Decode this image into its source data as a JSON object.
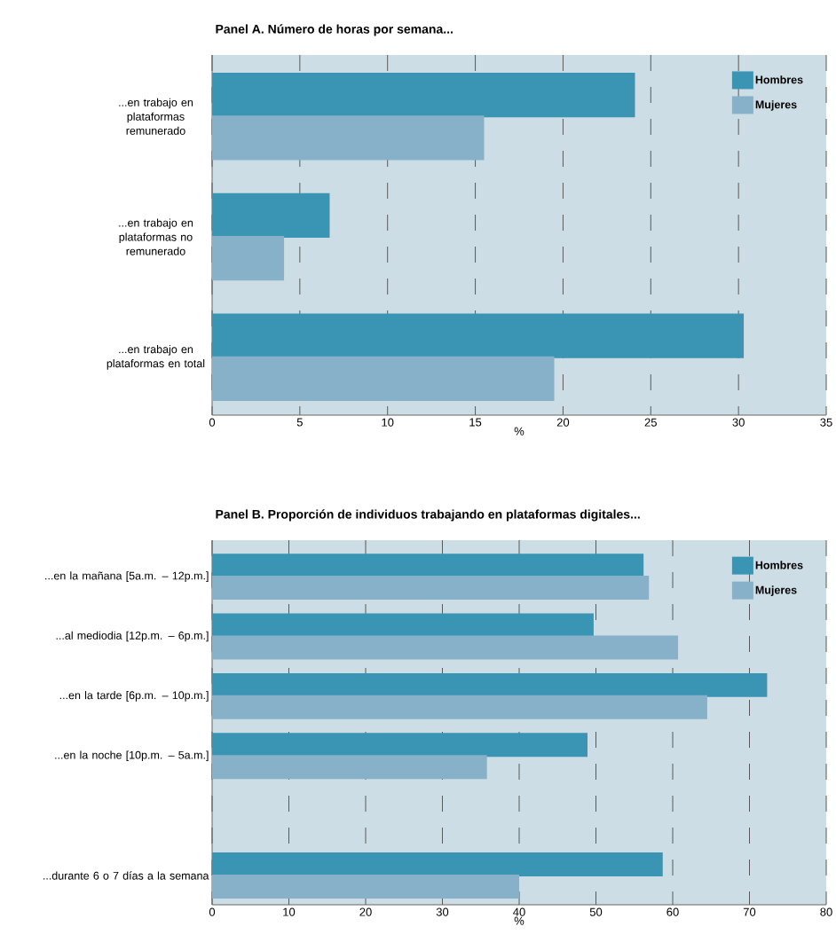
{
  "chart_data": [
    {
      "type": "bar",
      "orientation": "horizontal",
      "title": "Panel A. Número de horas por semana...",
      "xlabel": "%",
      "categories": [
        "...en trabajo en plataformas remunerado",
        "...en trabajo en plataformas no remunerado",
        "...en trabajo en plataformas en total"
      ],
      "series": [
        {
          "name": "Hombres",
          "color": "#3a95b4",
          "values": [
            24.1,
            6.7,
            30.3
          ]
        },
        {
          "name": "Mujeres",
          "color": "#86b1c8",
          "values": [
            15.5,
            4.1,
            19.5
          ]
        }
      ],
      "xlim": [
        0,
        35
      ],
      "xticks": [
        0,
        5,
        10,
        15,
        20,
        25,
        30,
        35
      ],
      "grid": "x",
      "legend": "top right"
    },
    {
      "type": "bar",
      "orientation": "horizontal",
      "title": "Panel B. Proporción de individuos trabajando en plataformas digitales...",
      "xlabel": "%",
      "categories": [
        "...en la mañana [5a.m. – 12p.m.]",
        "...al mediodia [12p.m. – 6p.m.]",
        "...en la tarde [6p.m. – 10p.m.]",
        "...en la noche [10p.m. – 5a.m.]",
        null,
        "...durante 6 o 7 días a la semana"
      ],
      "series": [
        {
          "name": "Hombres",
          "color": "#3a95b4",
          "values": [
            56.2,
            49.7,
            72.3,
            48.9,
            null,
            58.7
          ]
        },
        {
          "name": "Mujeres",
          "color": "#86b1c8",
          "values": [
            56.9,
            60.7,
            64.5,
            35.8,
            null,
            40.0
          ]
        }
      ],
      "xlim": [
        0,
        80
      ],
      "xticks": [
        0,
        10,
        20,
        30,
        40,
        50,
        60,
        70,
        80
      ],
      "grid": "x",
      "legend": "top right"
    }
  ]
}
